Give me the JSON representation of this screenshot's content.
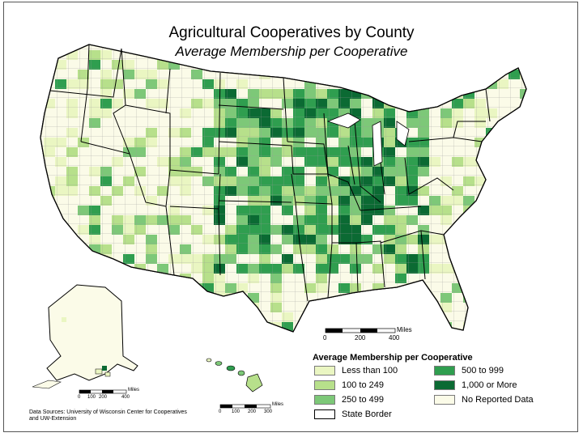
{
  "title": "Agricultural Cooperatives by County",
  "subtitle": "Average Membership per Cooperative",
  "legend": {
    "title": "Average Membership per Cooperative",
    "items": [
      {
        "label": "Less than 100",
        "color": "#eaf6c2"
      },
      {
        "label": "100 to 249",
        "color": "#b7e08b"
      },
      {
        "label": "250 to 499",
        "color": "#7dc878"
      },
      {
        "label": "500 to 999",
        "color": "#2f9e4f"
      },
      {
        "label": "1,000 or More",
        "color": "#0b6a33"
      },
      {
        "label": "No Reported Data",
        "color": "#fbfbe8"
      },
      {
        "label": "State Border",
        "color": "#ffffff"
      }
    ]
  },
  "scales": {
    "main": {
      "unit": "Miles",
      "ticks": [
        "0",
        "200",
        "400"
      ]
    },
    "alaska": {
      "unit": "Miles",
      "ticks": [
        "0",
        "100",
        "200",
        "400"
      ]
    },
    "hawaii": {
      "unit": "Miles",
      "ticks": [
        "0",
        "100",
        "200",
        "300"
      ]
    }
  },
  "sources": "Data Sources: University of Wisconsin Center for Cooperatives and UW-Extension",
  "colors": {
    "state_border": "#000000",
    "county_border": "#8a8a8a",
    "background": "#ffffff"
  }
}
